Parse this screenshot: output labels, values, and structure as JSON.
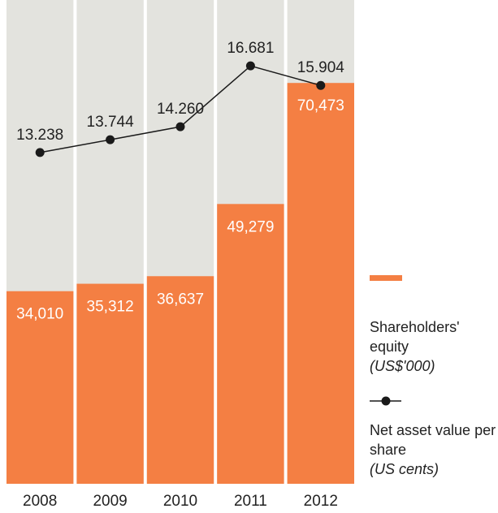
{
  "chart_data": {
    "type": "bar_line",
    "categories": [
      "2008",
      "2009",
      "2010",
      "2011",
      "2012"
    ],
    "series": [
      {
        "name": "Shareholders' equity",
        "unit": "(US$'000)",
        "type": "bar",
        "color": "#f47f43",
        "values": [
          34010,
          35312,
          36637,
          49279,
          70473
        ],
        "value_labels": [
          "34,010",
          "35,312",
          "36,637",
          "49,279",
          "70,473"
        ]
      },
      {
        "name": "Net asset value per share",
        "unit": "(US cents)",
        "type": "line",
        "axis": "y2",
        "color": "#1a1a1a",
        "values": [
          13.238,
          13.744,
          14.26,
          16.681,
          15.904
        ],
        "value_labels": [
          "13.238",
          "13.744",
          "14.260",
          "16.681",
          "15.904"
        ]
      }
    ],
    "ylim": [
      0,
      85000
    ],
    "y2lim": [
      0,
      19.3
    ],
    "background": "#e3e3de"
  }
}
